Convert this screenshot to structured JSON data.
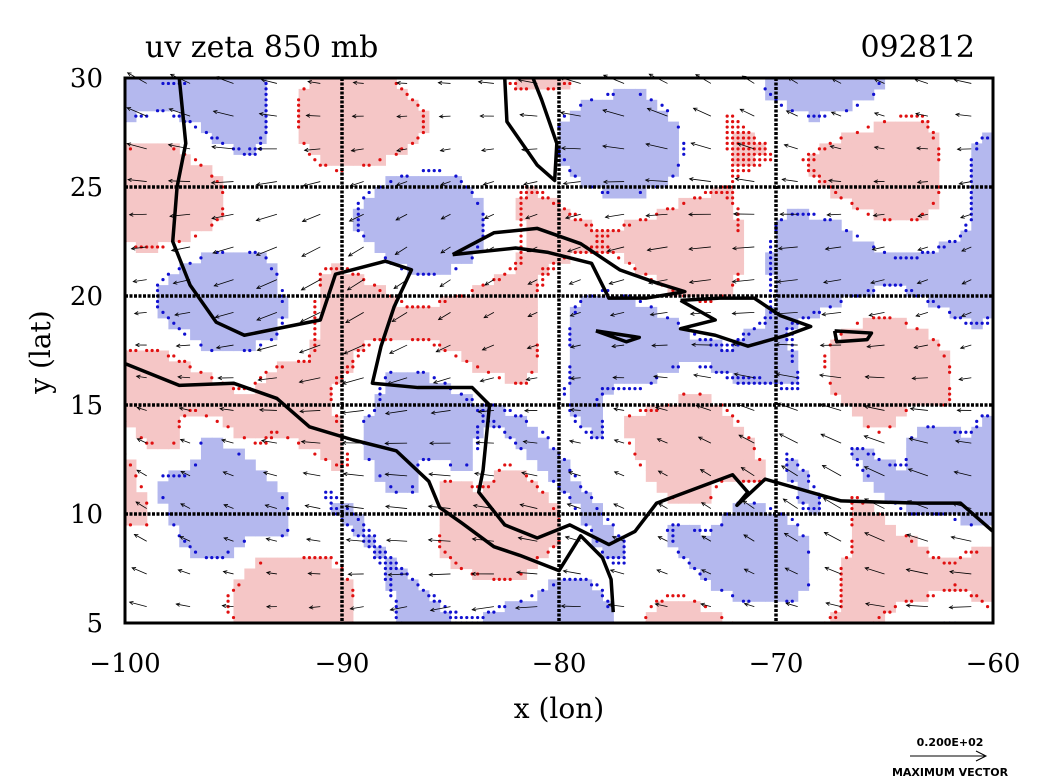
{
  "chart_data": {
    "type": "heatmap",
    "title": "uv zeta 850 mb",
    "subtitle": "092812",
    "xlabel": "x (lon)",
    "ylabel": "y (lat)",
    "xlim": [
      -100,
      -60
    ],
    "ylim": [
      5,
      30
    ],
    "xticks": [
      -100,
      -90,
      -80,
      -70,
      -60
    ],
    "yticks": [
      5,
      10,
      15,
      20,
      25,
      30
    ],
    "grid": true,
    "colors": {
      "positive_fill": "#f5c6c6",
      "positive_contour": "#e01010",
      "negative_fill": "#b4b8ee",
      "negative_contour": "#1010d0",
      "coast": "#000000"
    },
    "vector_key": {
      "value_label": "0.200E+02",
      "caption": "MAXIMUM VECTOR"
    }
  }
}
